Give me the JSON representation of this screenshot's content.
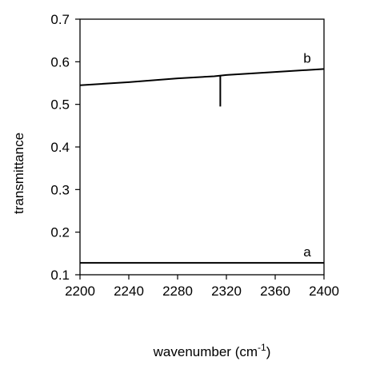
{
  "chart_data": {
    "type": "line",
    "title": "",
    "xlabel": "wavenumber (cm",
    "xlabel_superscript": "-1",
    "xlabel_suffix": ")",
    "ylabel": "transmittance",
    "xlim": [
      2200,
      2400
    ],
    "ylim": [
      0.1,
      0.7
    ],
    "x_ticks": [
      2200,
      2240,
      2280,
      2320,
      2360,
      2400
    ],
    "x_tick_labels": [
      "2200",
      "2240",
      "2280",
      "2320",
      "2360",
      "2400"
    ],
    "y_ticks": [
      0.1,
      0.2,
      0.3,
      0.4,
      0.5,
      0.6,
      0.7
    ],
    "y_tick_labels": [
      "0.1",
      "0.2",
      "0.3",
      "0.4",
      "0.5",
      "0.6",
      "0.7"
    ],
    "grid": false,
    "legend": "none",
    "series": [
      {
        "name": "b",
        "color": "#000000",
        "x": [
          2200,
          2240,
          2280,
          2310,
          2320,
          2360,
          2400
        ],
        "y": [
          0.545,
          0.552,
          0.561,
          0.566,
          0.569,
          0.576,
          0.583
        ],
        "dip": {
          "x": 2315,
          "y_top": 0.568,
          "y_bottom": 0.495
        }
      },
      {
        "name": "a",
        "color": "#000000",
        "x": [
          2200,
          2400
        ],
        "y": [
          0.128,
          0.128
        ]
      }
    ]
  }
}
